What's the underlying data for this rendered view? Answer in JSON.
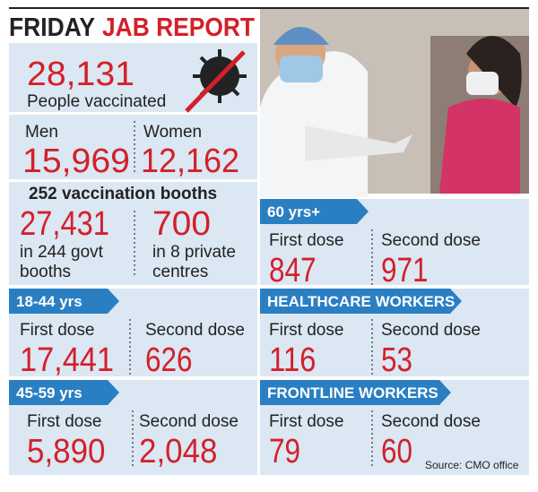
{
  "header": {
    "title_day": "FRIDAY",
    "title_main": "JAB REPORT"
  },
  "total": {
    "value": "28,131",
    "label": "People vaccinated"
  },
  "gender": [
    {
      "label": "Men",
      "value": "15,969"
    },
    {
      "label": "Women",
      "value": "12,162"
    }
  ],
  "booths": {
    "title": "252 vaccination booths",
    "items": [
      {
        "value": "27,431",
        "lines": [
          "in 244 govt",
          "booths"
        ]
      },
      {
        "value": "700",
        "lines": [
          "in 8 private",
          "centres"
        ]
      }
    ]
  },
  "groups": [
    {
      "title": "18-44 yrs",
      "doses": [
        {
          "label": "First dose",
          "value": "17,441"
        },
        {
          "label": "Second dose",
          "value": "626"
        }
      ]
    },
    {
      "title": "45-59 yrs",
      "doses": [
        {
          "label": "First dose",
          "value": "5,890"
        },
        {
          "label": "Second dose",
          "value": "2,048"
        }
      ]
    },
    {
      "title": "60 yrs+",
      "doses": [
        {
          "label": "First dose",
          "value": "847"
        },
        {
          "label": "Second dose",
          "value": "971"
        }
      ]
    },
    {
      "title": "HEALTHCARE WORKERS",
      "doses": [
        {
          "label": "First dose",
          "value": "116"
        },
        {
          "label": "Second dose",
          "value": "53"
        }
      ]
    },
    {
      "title": "FRONTLINE WORKERS",
      "doses": [
        {
          "label": "First dose",
          "value": "79"
        },
        {
          "label": "Second dose",
          "value": "60"
        }
      ]
    }
  ],
  "source": "Source: CMO office"
}
